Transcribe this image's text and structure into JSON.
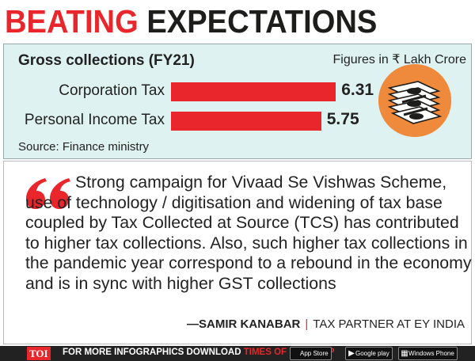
{
  "headline": {
    "word1": "BEATING",
    "word2": "EXPECTATIONS"
  },
  "chart_data": {
    "type": "bar",
    "orientation": "horizontal",
    "title": "Gross collections (FY21)",
    "units_note": "Figures in ₹ Lakh Crore",
    "categories": [
      "Corporation Tax",
      "Personal Income Tax"
    ],
    "values": [
      6.31,
      5.75
    ],
    "value_labels": [
      "6.31",
      "5.75"
    ],
    "source": "Source: Finance ministry",
    "bar_color": "#e8262b",
    "xlabel": "",
    "ylabel": ""
  },
  "quote": {
    "text": "Strong campaign for Vivaad Se Vishwas Scheme, use of technology / digitisation and widening of tax base coupled by Tax Collected at Source (TCS) has contributed to higher tax collections. Also, such higher tax collections in the pandemic year correspond to a rebound in the economy and is in sync with higher GST collections",
    "author": "—SAMIR KANABAR",
    "role": "TAX PARTNER AT EY INDIA"
  },
  "footer": {
    "badge": "TOI",
    "text": "FOR MORE  INFOGRAPHICS DOWNLOAD",
    "brand": "TIMES OF INDIA  APP",
    "app_store": "App Store",
    "google_play": "Google play",
    "windows_phone": "Windows Phone"
  },
  "colors": {
    "accent": "#e8262b",
    "chart_bg": "#dff2f2",
    "money_circle": "#ef8a3c"
  },
  "icons": [
    "quote-marks-icon",
    "money-stack-icon",
    "apple-icon",
    "google-play-icon",
    "windows-icon"
  ]
}
